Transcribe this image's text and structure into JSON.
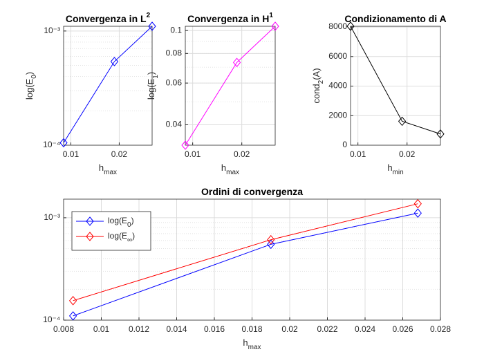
{
  "chart_data": [
    {
      "type": "line",
      "title": [
        {
          "t": "Convergenza in L"
        },
        {
          "t": "2",
          "sup": true
        }
      ],
      "xlabel": [
        {
          "t": "h"
        },
        {
          "t": "max",
          "sub": true
        }
      ],
      "ylabel": [
        {
          "t": "log(E"
        },
        {
          "t": "0",
          "sub": true
        },
        {
          "t": ")"
        }
      ],
      "x": [
        0.0085,
        0.019,
        0.0268
      ],
      "series": [
        {
          "color": "#0000ff",
          "values": [
            0.000105,
            0.00054,
            0.0011
          ]
        }
      ],
      "xlim": [
        0.0085,
        0.0268
      ],
      "xticks": [
        0.01,
        0.02
      ],
      "ylim": [
        0.0001,
        0.0011
      ],
      "yticks": [
        {
          "value": 0.0001,
          "label": "10⁻⁴"
        },
        {
          "value": 0.001,
          "label": "10⁻³"
        }
      ],
      "yscale": "log",
      "grid": true,
      "minor_grid": true,
      "marker": "diamond"
    },
    {
      "type": "line",
      "title": [
        {
          "t": "Convergenza in H"
        },
        {
          "t": "1",
          "sup": true
        }
      ],
      "xlabel": [
        {
          "t": "h"
        },
        {
          "t": "max",
          "sub": true
        }
      ],
      "ylabel": [
        {
          "t": "log(E"
        },
        {
          "t": "1",
          "sub": true
        },
        {
          "t": ")"
        }
      ],
      "x": [
        0.0085,
        0.019,
        0.0268
      ],
      "series": [
        {
          "color": "#ff00ff",
          "values": [
            0.0328,
            0.0733,
            0.1042
          ]
        }
      ],
      "xlim": [
        0.0085,
        0.0268
      ],
      "xticks": [
        0.01,
        0.02
      ],
      "ylim": [
        0.0328,
        0.1042
      ],
      "yticks": [
        0.04,
        0.06,
        0.08,
        0.1
      ],
      "yscale": "log",
      "grid": true,
      "minor_grid": true,
      "marker": "diamond"
    },
    {
      "type": "line",
      "title": [
        {
          "t": "Condizionamento di A"
        }
      ],
      "xlabel": [
        {
          "t": "h"
        },
        {
          "t": "min",
          "sub": true
        }
      ],
      "ylabel": [
        {
          "t": "cond"
        },
        {
          "t": "2",
          "sub": true
        },
        {
          "t": "(A)"
        }
      ],
      "x": [
        0.0085,
        0.019,
        0.0268
      ],
      "series": [
        {
          "color": "#000000",
          "values": [
            8050,
            1620,
            760
          ]
        }
      ],
      "xlim": [
        0.0085,
        0.0268
      ],
      "xticks": [
        0.01,
        0.02
      ],
      "ylim": [
        0,
        8050
      ],
      "yticks": [
        0,
        2000,
        4000,
        6000,
        8000
      ],
      "yscale": "linear",
      "grid": true,
      "minor_grid": false,
      "marker": "diamond"
    },
    {
      "type": "line",
      "title": [
        {
          "t": "Ordini di convergenza"
        }
      ],
      "xlabel": [
        {
          "t": "h"
        },
        {
          "t": "max",
          "sub": true
        }
      ],
      "x": [
        0.0085,
        0.019,
        0.0268
      ],
      "series": [
        {
          "name": [
            {
              "t": "log(E"
            },
            {
              "t": "0",
              "sub": true
            },
            {
              "t": ")"
            }
          ],
          "color": "#0000ff",
          "values": [
            0.00011,
            0.00055,
            0.00111
          ]
        },
        {
          "name": [
            {
              "t": "log(E"
            },
            {
              "t": "∞",
              "sub": true
            },
            {
              "t": ")"
            }
          ],
          "color": "#ff0000",
          "values": [
            0.000155,
            0.00061,
            0.00137
          ]
        }
      ],
      "xlim": [
        0.008,
        0.028
      ],
      "xticks": [
        0.008,
        0.01,
        0.012,
        0.014,
        0.016,
        0.018,
        0.02,
        0.022,
        0.024,
        0.026,
        0.028
      ],
      "ylim": [
        0.0001,
        0.00152
      ],
      "yticks": [
        {
          "value": 0.0001,
          "label": "10⁻⁴"
        },
        {
          "value": 0.001,
          "label": "10⁻³"
        }
      ],
      "yscale": "log",
      "grid": true,
      "minor_grid": true,
      "marker": "diamond",
      "legend": "northwest"
    }
  ]
}
